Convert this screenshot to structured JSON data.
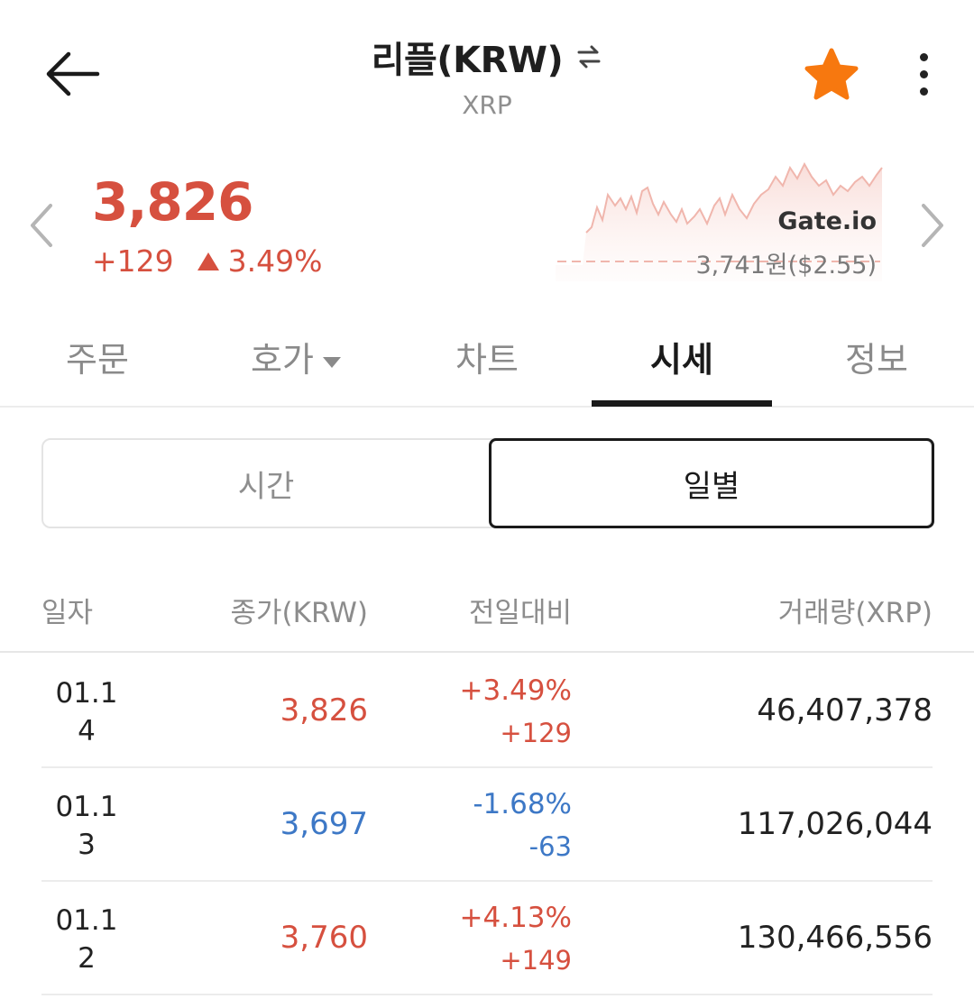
{
  "header": {
    "title": "리플(KRW)",
    "subtitle": "XRP",
    "back_icon": "arrow-left-icon",
    "swap_icon": "swap-icon",
    "favorite_icon": "star-icon",
    "favorite_color": "#f7780f",
    "more_icon": "more-vertical-icon"
  },
  "price": {
    "current": "3,826",
    "change_amount": "+129",
    "change_percent": "3.49%",
    "direction": "up",
    "up_color": "#d6503f",
    "down_color": "#3d78c6",
    "external": {
      "exchange": "Gate.io",
      "price": "3,741원($2.55)"
    },
    "prev_icon": "chevron-left-icon",
    "next_icon": "chevron-right-icon"
  },
  "tabs": [
    {
      "label": "주문",
      "active": false
    },
    {
      "label": "호가",
      "active": false,
      "has_dropdown": true
    },
    {
      "label": "차트",
      "active": false
    },
    {
      "label": "시세",
      "active": true
    },
    {
      "label": "정보",
      "active": false
    }
  ],
  "segment": {
    "options": [
      {
        "label": "시간",
        "selected": false
      },
      {
        "label": "일별",
        "selected": true
      }
    ]
  },
  "table": {
    "headers": [
      "일자",
      "종가(KRW)",
      "전일대비",
      "거래량(XRP)"
    ],
    "rows": [
      {
        "date_line1": "01.1",
        "date_line2": "4",
        "close": "3,826",
        "pct": "+3.49%",
        "diff": "+129",
        "volume": "46,407,378",
        "direction": "up"
      },
      {
        "date_line1": "01.1",
        "date_line2": "3",
        "close": "3,697",
        "pct": "-1.68%",
        "diff": "-63",
        "volume": "117,026,044",
        "direction": "down"
      },
      {
        "date_line1": "01.1",
        "date_line2": "2",
        "close": "3,760",
        "pct": "+4.13%",
        "diff": "+149",
        "volume": "130,466,556",
        "direction": "up"
      }
    ]
  }
}
